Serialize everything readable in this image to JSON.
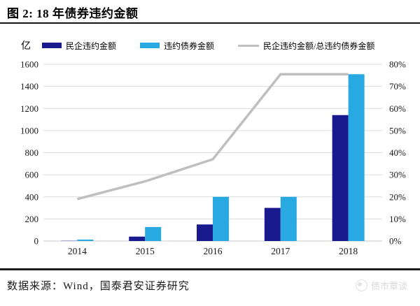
{
  "header": {
    "title": "图 2: 18 年债券违约金额"
  },
  "chart_data": {
    "type": "bar",
    "title": "18 年债券违约金额",
    "unit_label": "亿",
    "categories": [
      "2014",
      "2015",
      "2016",
      "2017",
      "2018"
    ],
    "series": [
      {
        "name": "民企违约金额",
        "type": "bar",
        "axis": "left",
        "color": "#1A1A8F",
        "values": [
          2,
          40,
          150,
          300,
          1140
        ]
      },
      {
        "name": "违约债券金额",
        "type": "bar",
        "axis": "left",
        "color": "#29A9E1",
        "values": [
          13,
          127,
          400,
          400,
          1510
        ]
      },
      {
        "name": "民企违约金额/总违约债券金额",
        "type": "line",
        "axis": "right",
        "color": "#BFBFBF",
        "values": [
          19,
          27,
          37,
          75.5,
          75.5
        ]
      }
    ],
    "left_axis": {
      "min": 0,
      "max": 1600,
      "step": 200,
      "ticks": [
        "0",
        "200",
        "400",
        "600",
        "800",
        "1000",
        "1200",
        "1400",
        "1600"
      ]
    },
    "right_axis": {
      "min": 0,
      "max": 80,
      "step": 10,
      "ticks": [
        "0%",
        "10%",
        "20%",
        "30%",
        "40%",
        "50%",
        "60%",
        "70%",
        "80%"
      ]
    },
    "legend_position": "top",
    "grid": true
  },
  "footer": {
    "source": "数据来源：Wind，国泰君安证券研究",
    "watermark": "债市覃谈"
  }
}
